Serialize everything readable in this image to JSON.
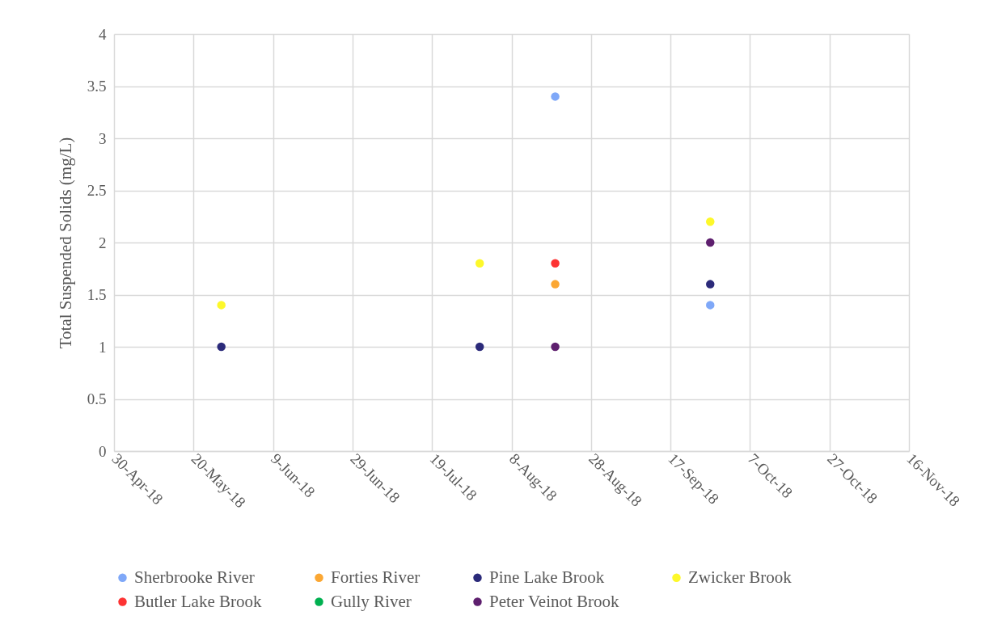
{
  "chart_data": {
    "type": "scatter",
    "ylabel": "Total Suspended Solids (mg/L)",
    "xlim": [
      "2018-04-30",
      "2018-11-16"
    ],
    "xticks": [
      {
        "value": "2018-04-30",
        "label": "30-Apr-18"
      },
      {
        "value": "2018-05-20",
        "label": "20-May-18"
      },
      {
        "value": "2018-06-09",
        "label": "9-Jun-18"
      },
      {
        "value": "2018-06-29",
        "label": "29-Jun-18"
      },
      {
        "value": "2018-07-19",
        "label": "19-Jul-18"
      },
      {
        "value": "2018-08-08",
        "label": "8-Aug-18"
      },
      {
        "value": "2018-08-28",
        "label": "28-Aug-18"
      },
      {
        "value": "2018-09-17",
        "label": "17-Sep-18"
      },
      {
        "value": "2018-10-07",
        "label": "7-Oct-18"
      },
      {
        "value": "2018-10-27",
        "label": "27-Oct-18"
      },
      {
        "value": "2018-11-16",
        "label": "16-Nov-18"
      }
    ],
    "ylim": [
      0,
      4
    ],
    "yticks": [
      0,
      0.5,
      1,
      1.5,
      2,
      2.5,
      3,
      3.5,
      4
    ],
    "grid": true,
    "legend": "bottom",
    "marker": "circle",
    "series": [
      {
        "name": "Sherbrooke River",
        "color": "#7fa8f8",
        "x": [
          "2018-08-19",
          "2018-09-27"
        ],
        "values": [
          3.4,
          1.4
        ]
      },
      {
        "name": "Forties River",
        "color": "#fba733",
        "x": [
          "2018-08-19"
        ],
        "values": [
          1.6
        ]
      },
      {
        "name": "Pine Lake Brook",
        "color": "#2b2a7a",
        "x": [
          "2018-05-27",
          "2018-07-31",
          "2018-09-27"
        ],
        "values": [
          1.0,
          1.0,
          1.6
        ]
      },
      {
        "name": "Zwicker Brook",
        "color": "#fdf82a",
        "x": [
          "2018-05-27",
          "2018-07-31",
          "2018-09-27"
        ],
        "values": [
          1.4,
          1.8,
          2.2
        ]
      },
      {
        "name": "Butler Lake Brook",
        "color": "#fd3333",
        "x": [
          "2018-08-19"
        ],
        "values": [
          1.8
        ]
      },
      {
        "name": "Gully River",
        "color": "#00b050"
      },
      {
        "name": "Peter Veinot Brook",
        "color": "#5e1f6e",
        "x": [
          "2018-08-19",
          "2018-09-27"
        ],
        "values": [
          1.0,
          2.0
        ]
      }
    ]
  }
}
